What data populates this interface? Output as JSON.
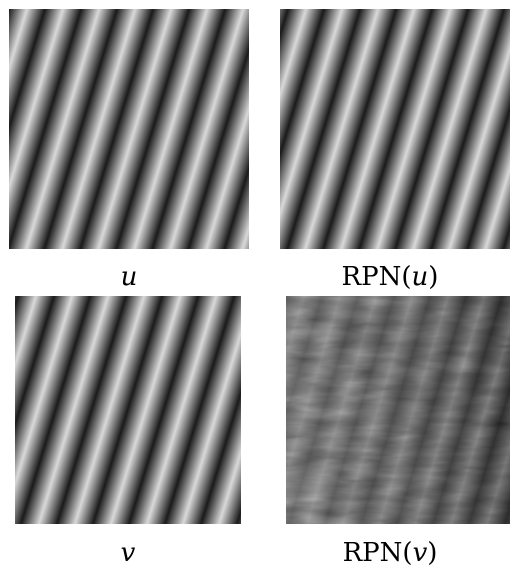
{
  "figure": {
    "panels": [
      {
        "id": "u",
        "label_name": "",
        "label_arg": "u",
        "texture": "stripes"
      },
      {
        "id": "rpn_u",
        "label_name": "RPN",
        "label_arg": "u",
        "texture": "stripes"
      },
      {
        "id": "v",
        "label_name": "",
        "label_arg": "v",
        "texture": "stripes"
      },
      {
        "id": "rpn_v",
        "label_name": "RPN",
        "label_arg": "v",
        "texture": "noisy-stripes"
      }
    ],
    "colors": {
      "dark": "#111111",
      "light": "#dcdcdc",
      "background": "#ffffff"
    }
  }
}
